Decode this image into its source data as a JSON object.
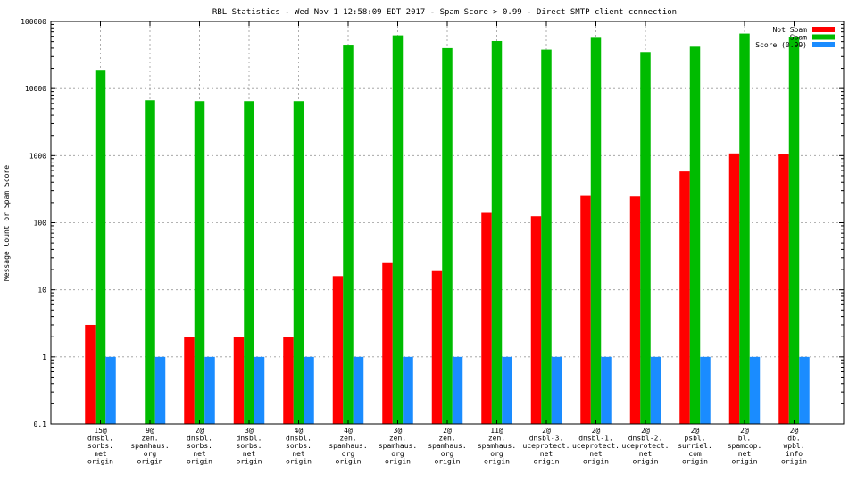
{
  "chart_data": {
    "type": "bar",
    "title": "RBL Statistics - Wed Nov  1 12:58:09 EDT 2017 - Spam Score > 0.99 - Direct SMTP client connection",
    "xlabel": "",
    "ylabel": "Message Count or Spam Score",
    "yscale": "log",
    "ylim": [
      0.1,
      100000
    ],
    "yticks": [
      "0.1",
      "1",
      "10",
      "100",
      "1000",
      "10000",
      "100000"
    ],
    "grid": true,
    "legend_position": "top-right",
    "categories": [
      [
        "15@",
        "dnsbl.",
        "sorbs.",
        "net",
        "origin"
      ],
      [
        "9@",
        "zen.",
        "spamhaus.",
        "org",
        "origin"
      ],
      [
        "2@",
        "dnsbl.",
        "sorbs.",
        "net",
        "origin"
      ],
      [
        "3@",
        "dnsbl.",
        "sorbs.",
        "net",
        "origin"
      ],
      [
        "4@",
        "dnsbl.",
        "sorbs.",
        "net",
        "origin"
      ],
      [
        "4@",
        "zen.",
        "spamhaus.",
        "org",
        "origin"
      ],
      [
        "3@",
        "zen.",
        "spamhaus.",
        "org",
        "origin"
      ],
      [
        "2@",
        "zen.",
        "spamhaus.",
        "org",
        "origin"
      ],
      [
        "11@",
        "zen.",
        "spamhaus.",
        "org",
        "origin"
      ],
      [
        "2@",
        "dnsbl-3.",
        "uceprotect.",
        "net",
        "origin"
      ],
      [
        "2@",
        "dnsbl-1.",
        "uceprotect.",
        "net",
        "origin"
      ],
      [
        "2@",
        "dnsbl-2.",
        "uceprotect.",
        "net",
        "origin"
      ],
      [
        "2@",
        "psbl.",
        "surriel.",
        "com",
        "origin"
      ],
      [
        "2@",
        "bl.",
        "spamcop.",
        "net",
        "origin"
      ],
      [
        "2@",
        "db.",
        "wpbl.",
        "info",
        "origin"
      ]
    ],
    "series": [
      {
        "name": "Not Spam",
        "color": "#ff0000",
        "values": [
          3,
          null,
          2,
          2,
          2,
          16,
          25,
          19,
          140,
          125,
          250,
          245,
          580,
          1080,
          1050
        ]
      },
      {
        "name": "Spam",
        "color": "#00bb00",
        "values": [
          19000,
          6700,
          6500,
          6500,
          6500,
          45000,
          62000,
          40000,
          51000,
          38000,
          57000,
          35000,
          42000,
          66000,
          58000
        ]
      },
      {
        "name": "Score (0.99)",
        "color": "#1a8cff",
        "values": [
          1,
          1,
          1,
          1,
          1,
          1,
          1,
          1,
          1,
          1,
          1,
          1,
          1,
          1,
          1
        ]
      }
    ]
  }
}
